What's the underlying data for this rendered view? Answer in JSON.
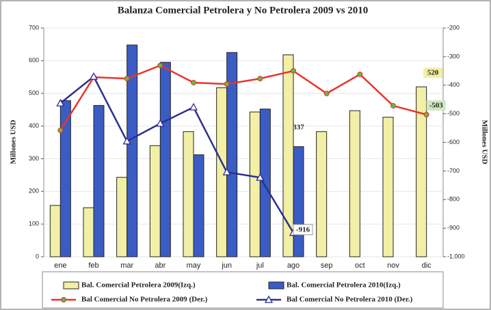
{
  "chart_data": {
    "type": "combo",
    "title": "Balanza Comercial Petrolera y No Petrolera 2009 vs 2010",
    "y_label": "Millones USD",
    "y2_label": "Millones USD",
    "categories": [
      "ene",
      "feb",
      "mar",
      "abr",
      "may",
      "jun",
      "jul",
      "ago",
      "sep",
      "oct",
      "nov",
      "dic"
    ],
    "ylim": [
      0,
      700
    ],
    "yticks": [
      0,
      100,
      200,
      300,
      400,
      500,
      600,
      700
    ],
    "y2lim": [
      -1000,
      -200
    ],
    "y2ticks": [
      {
        "value": -1000,
        "label": "-1.000"
      },
      -900,
      -800,
      -700,
      -600,
      -500,
      -400,
      -300,
      -200
    ],
    "grid": true,
    "series": [
      {
        "name": "Bal. Comercial Petrolera 2009(Izq.)",
        "type": "bar",
        "color": "#f2efa6",
        "axis": "y",
        "values": [
          157,
          150,
          243,
          340,
          383,
          517,
          443,
          618,
          383,
          447,
          427,
          520
        ],
        "labels_at": [
          11
        ]
      },
      {
        "name": "Bal. Comercial Petrolera 2010(Izq.)",
        "type": "bar",
        "color": "#3b5cc4",
        "axis": "y",
        "values": [
          478,
          463,
          648,
          595,
          312,
          625,
          452,
          337,
          null,
          null,
          null,
          null
        ],
        "labels_at": [
          7
        ]
      },
      {
        "name": "Bal Comercial No Petrolera 2009 (Der.)",
        "type": "line",
        "color": "#e8342a",
        "marker": "circle",
        "marker_color": "#5dbb46",
        "axis": "y2",
        "values": [
          -558,
          -372,
          -377,
          -331,
          -391,
          -396,
          -377,
          -350,
          -429,
          -362,
          -472,
          -503
        ],
        "labels_at": [
          11
        ]
      },
      {
        "name": "Bal Comercial No Petrolera 2010 (Der.)",
        "type": "line",
        "color": "#2b2f8f",
        "marker": "triangle",
        "marker_color": "#ffffff",
        "axis": "y2",
        "values": [
          -463,
          -370,
          -596,
          -534,
          -477,
          -704,
          -723,
          -916,
          null,
          null,
          null,
          null
        ],
        "labels_at": [
          7
        ]
      }
    ]
  }
}
